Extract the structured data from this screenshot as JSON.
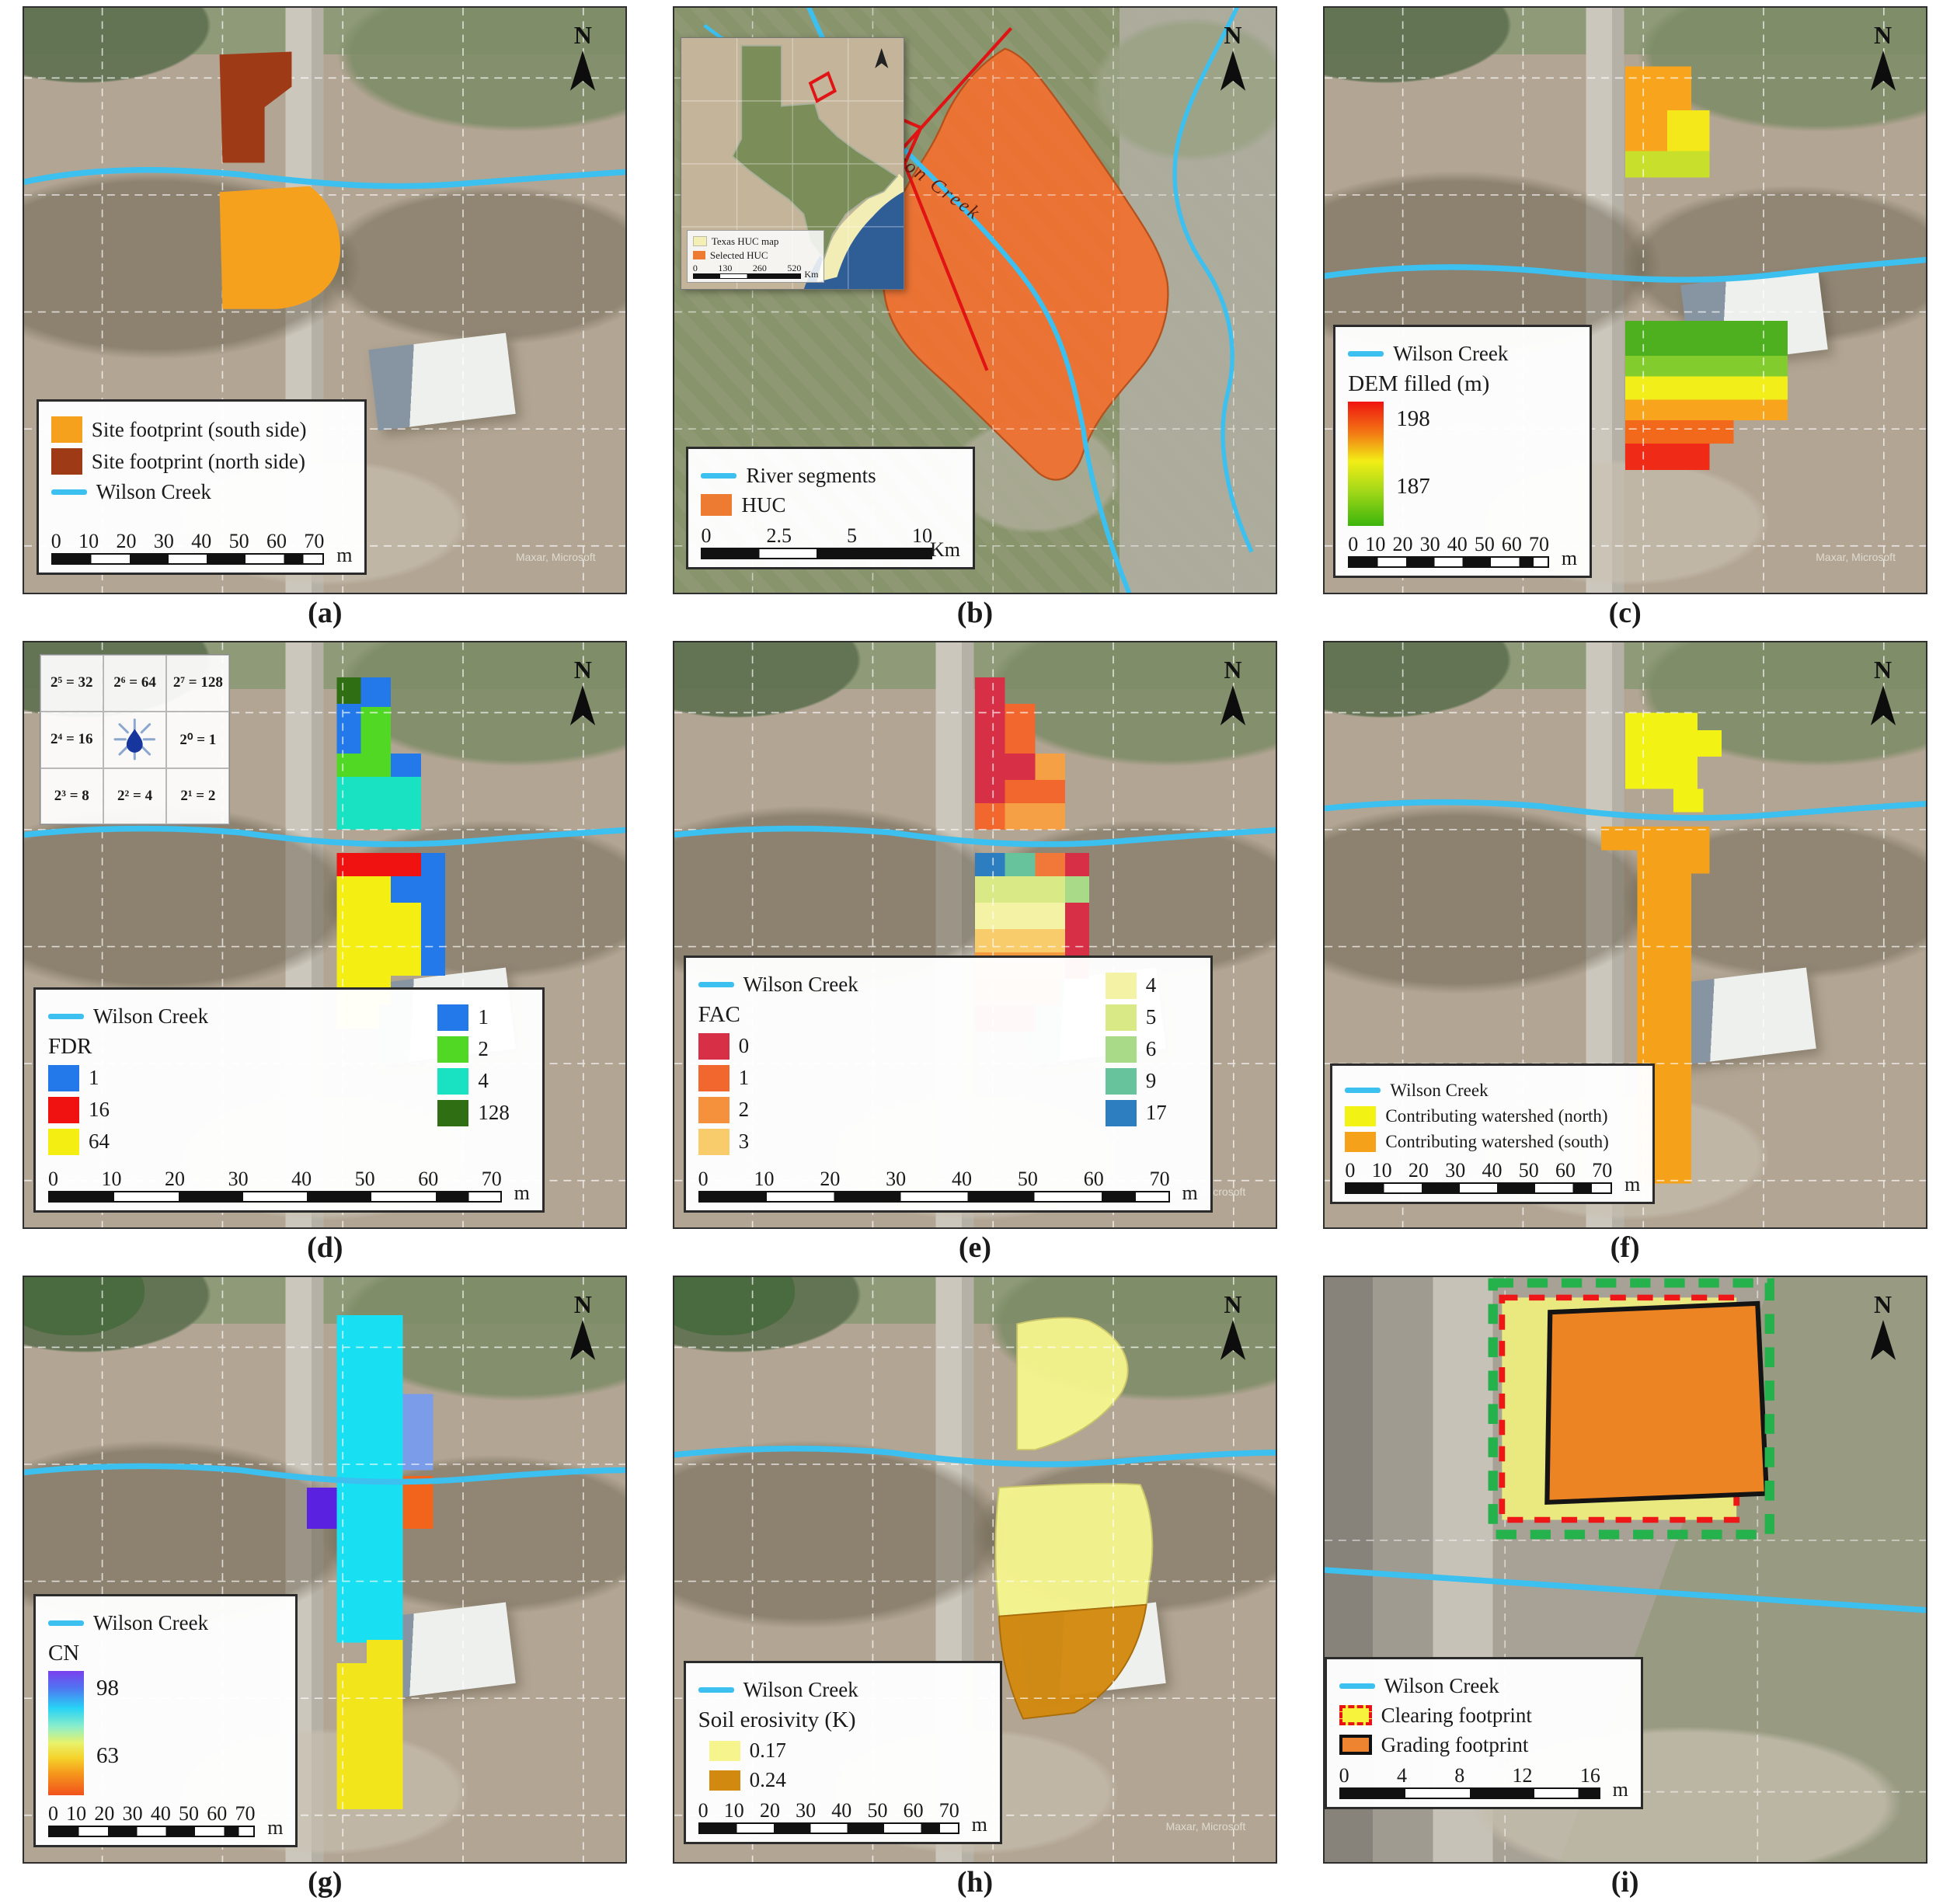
{
  "figure": {
    "north_label": "N",
    "map_credit": "Maxar, Microsoft"
  },
  "panels": {
    "a": {
      "caption": "(a)",
      "legend": {
        "items": [
          {
            "label": "Site footprint (south side)",
            "color": "#F6A11E"
          },
          {
            "label": "Site footprint (north side)",
            "color": "#9F3A16"
          },
          {
            "label": "Wilson Creek",
            "color": "#3BC0F0"
          }
        ],
        "scalebar": {
          "ticks": [
            "0",
            "10",
            "20",
            "30",
            "40",
            "50",
            "60",
            "70"
          ],
          "unit": "m"
        }
      }
    },
    "b": {
      "caption": "(b)",
      "map_label": "Wilson Creek",
      "inset": {
        "texas_label": "Texas HUC map",
        "selected_label": "Selected HUC",
        "texas_color": "#F4EFB5",
        "selected_color": "#ED7B32",
        "scalebar": {
          "ticks": [
            "0",
            "130",
            "260",
            "520"
          ],
          "unit": "Km"
        }
      },
      "legend": {
        "items": [
          {
            "label": "River segments",
            "color": "#3BC0F0"
          },
          {
            "label": "HUC",
            "color": "#ED7B32"
          }
        ],
        "scalebar": {
          "ticks": [
            "0",
            "2.5",
            "5",
            "10"
          ],
          "unit": "Km"
        }
      }
    },
    "c": {
      "caption": "(c)",
      "legend": {
        "creek_label": "Wilson Creek",
        "title": "DEM filled (m)",
        "ramp_max": "198",
        "ramp_min": "187",
        "scalebar": {
          "ticks": [
            "0",
            "10",
            "20",
            "30",
            "40",
            "50",
            "60",
            "70"
          ],
          "unit": "m"
        }
      }
    },
    "d": {
      "caption": "(d)",
      "inset": {
        "cells": [
          "2⁵ = 32",
          "2⁶ = 64",
          "2⁷ = 128",
          "2⁴ = 16",
          "",
          "2⁰ = 1",
          "2³ = 8",
          "2² = 4",
          "2¹ = 2"
        ]
      },
      "legend": {
        "creek_label": "Wilson Creek",
        "title": "FDR",
        "left": [
          {
            "label": "1",
            "color": "#2378EA"
          },
          {
            "label": "16",
            "color": "#F01111"
          },
          {
            "label": "64",
            "color": "#F4EE12"
          }
        ],
        "right": [
          {
            "label": "1",
            "color": "#2378EA"
          },
          {
            "label": "2",
            "color": "#50D824"
          },
          {
            "label": "4",
            "color": "#19E2C2"
          },
          {
            "label": "128",
            "color": "#2F6E12"
          }
        ],
        "scalebar": {
          "ticks": [
            "0",
            "10",
            "20",
            "30",
            "40",
            "50",
            "60",
            "70"
          ],
          "unit": "m"
        }
      }
    },
    "e": {
      "caption": "(e)",
      "legend": {
        "creek_label": "Wilson Creek",
        "title": "FAC",
        "left": [
          {
            "label": "0",
            "color": "#D73046"
          },
          {
            "label": "1",
            "color": "#F2672E"
          },
          {
            "label": "2",
            "color": "#F5903D"
          },
          {
            "label": "3",
            "color": "#F8CB6B"
          }
        ],
        "right": [
          {
            "label": "4",
            "color": "#F4F2A4"
          },
          {
            "label": "5",
            "color": "#D9E985"
          },
          {
            "label": "6",
            "color": "#A9DA88"
          },
          {
            "label": "9",
            "color": "#66C39B"
          },
          {
            "label": "17",
            "color": "#2D7DC1"
          }
        ],
        "scalebar": {
          "ticks": [
            "0",
            "10",
            "20",
            "30",
            "40",
            "50",
            "60",
            "70"
          ],
          "unit": "m"
        }
      }
    },
    "f": {
      "caption": "(f)",
      "legend": {
        "items": [
          {
            "label": "Wilson Creek",
            "color": "#3BC0F0"
          },
          {
            "label": "Contributing watershed (north)",
            "color": "#F2F215"
          },
          {
            "label": "Contributing watershed (south)",
            "color": "#F5A21A"
          }
        ],
        "scalebar": {
          "ticks": [
            "0",
            "10",
            "20",
            "30",
            "40",
            "50",
            "60",
            "70"
          ],
          "unit": "m"
        }
      }
    },
    "g": {
      "caption": "(g)",
      "legend": {
        "creek_label": "Wilson Creek",
        "title": "CN",
        "ramp_max": "98",
        "ramp_min": "63",
        "scalebar": {
          "ticks": [
            "0",
            "10",
            "20",
            "30",
            "40",
            "50",
            "60",
            "70"
          ],
          "unit": "m"
        }
      }
    },
    "h": {
      "caption": "(h)",
      "legend": {
        "creek_label": "Wilson Creek",
        "title": "Soil erosivity (K)",
        "items": [
          {
            "label": "0.17",
            "color": "#F6F58D"
          },
          {
            "label": "0.24",
            "color": "#D2890F"
          }
        ],
        "scalebar": {
          "ticks": [
            "0",
            "10",
            "20",
            "30",
            "40",
            "50",
            "60",
            "70"
          ],
          "unit": "m"
        }
      }
    },
    "i": {
      "caption": "(i)",
      "legend": {
        "items": [
          {
            "label": "Wilson Creek",
            "color": "#3BC0F0"
          },
          {
            "label": "Clearing footprint",
            "color": "#E81414"
          },
          {
            "label": "Grading footprint",
            "color": "#EF8430"
          }
        ],
        "scalebar": {
          "ticks": [
            "0",
            "4",
            "8",
            "12",
            "16"
          ],
          "unit": "m"
        }
      }
    }
  }
}
